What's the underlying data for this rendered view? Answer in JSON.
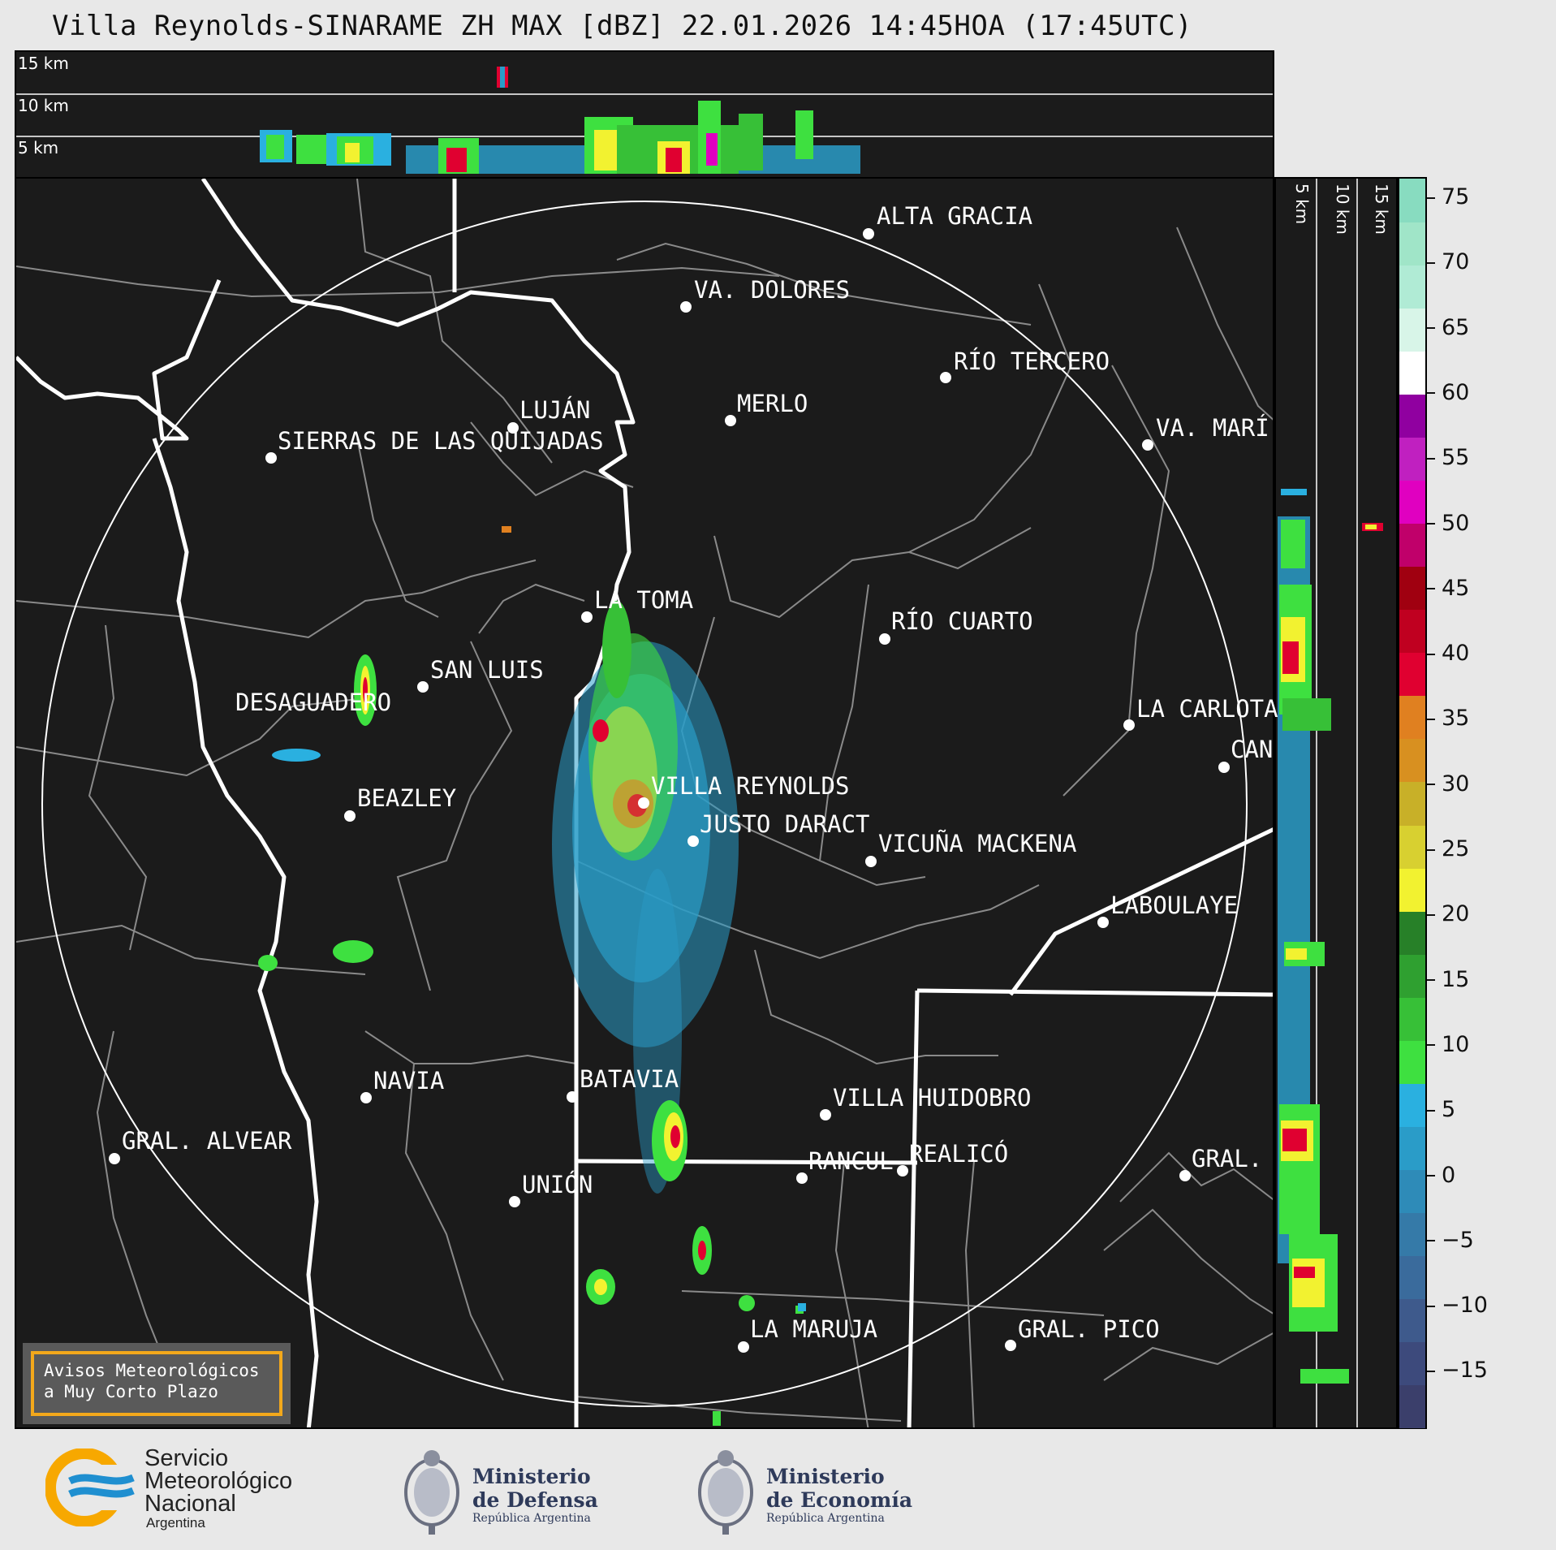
{
  "title": "Villa Reynolds-SINARAME ZH MAX [dBZ] 22.01.2026 14:45HOA (17:45UTC)",
  "top_profile": {
    "labels": [
      "15 km",
      "10 km",
      "5 km"
    ]
  },
  "side_profile": {
    "labels": [
      "5 km",
      "10 km",
      "15 km"
    ]
  },
  "colorbar": {
    "ticks": [
      "75",
      "70",
      "65",
      "60",
      "55",
      "50",
      "45",
      "40",
      "35",
      "30",
      "25",
      "20",
      "15",
      "10",
      "5",
      "0",
      "−5",
      "−10",
      "−15"
    ],
    "colors": [
      "#3b3f6b",
      "#3d4a7c",
      "#3e5a8c",
      "#3a6b9c",
      "#357aa8",
      "#2e8bb8",
      "#2a9cc8",
      "#2ab0e0",
      "#3ee040",
      "#37c037",
      "#2fa030",
      "#278028",
      "#f2f230",
      "#d8d030",
      "#c8b028",
      "#d89020",
      "#e08020",
      "#e00030",
      "#c00020",
      "#a00010",
      "#c0006a",
      "#e000c0",
      "#c020c0",
      "#9000a0",
      "#ffffff",
      "#d8f5e8",
      "#b0ebd5",
      "#a0e5c8",
      "#88dcc0"
    ]
  },
  "cities": [
    {
      "name": "ALTA GRACIA"
    },
    {
      "name": "VA. DOLORES"
    },
    {
      "name": "RÍO TERCERO"
    },
    {
      "name": "LUJÁN"
    },
    {
      "name": "MERLO"
    },
    {
      "name": "SIERRAS DE LAS QUIJADAS"
    },
    {
      "name": "VA. MARÍ"
    },
    {
      "name": "LA TOMA"
    },
    {
      "name": "RÍO CUARTO"
    },
    {
      "name": "SAN LUIS"
    },
    {
      "name": "DESAGUADERO"
    },
    {
      "name": "LA CARLOTA"
    },
    {
      "name": "CAN"
    },
    {
      "name": "VILLA REYNOLDS"
    },
    {
      "name": "BEAZLEY"
    },
    {
      "name": "JUSTO DARACT"
    },
    {
      "name": "VICUÑA MACKENA"
    },
    {
      "name": "LABOULAYE"
    },
    {
      "name": "NAVIA"
    },
    {
      "name": "BATAVIA"
    },
    {
      "name": "VILLA HUIDOBRO"
    },
    {
      "name": "GRAL. ALVEAR"
    },
    {
      "name": "RANCUL"
    },
    {
      "name": "REALICÓ"
    },
    {
      "name": "GRAL."
    },
    {
      "name": "UNIÓN"
    },
    {
      "name": "LA MARUJA"
    },
    {
      "name": "GRAL. PICO"
    }
  ],
  "warning": {
    "line1": "Avisos Meteorológicos",
    "line2": "a Muy Corto Plazo"
  },
  "logos": {
    "smn": {
      "l1": "Servicio",
      "l2": "Meteorológico",
      "l3": "Nacional",
      "l4": "Argentina"
    },
    "defensa": {
      "l1": "Ministerio",
      "l2": "de Defensa",
      "l3": "República Argentina"
    },
    "economia": {
      "l1": "Ministerio",
      "l2": "de Economía",
      "l3": "República Argentina"
    }
  }
}
